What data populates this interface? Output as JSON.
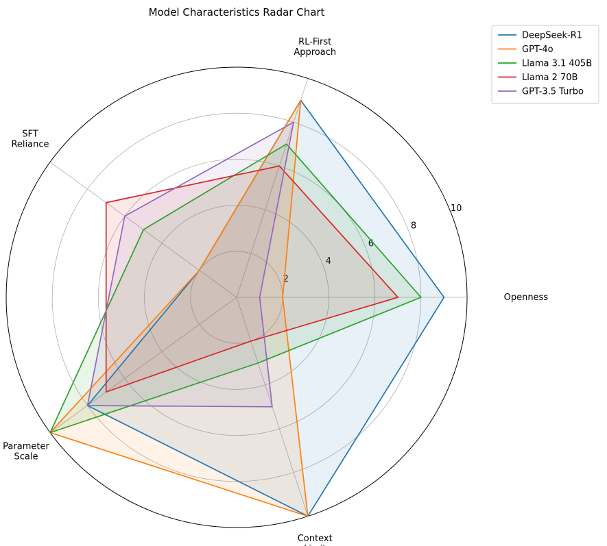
{
  "chart_data": {
    "type": "radar",
    "title": "Model Characteristics Radar Chart",
    "axes": [
      {
        "key": "openness",
        "label_lines": [
          "Openness"
        ]
      },
      {
        "key": "rl_first",
        "label_lines": [
          "RL-First",
          "Approach"
        ]
      },
      {
        "key": "sft",
        "label_lines": [
          "SFT",
          "Reliance"
        ]
      },
      {
        "key": "param",
        "label_lines": [
          "Parameter",
          "Scale"
        ]
      },
      {
        "key": "context",
        "label_lines": [
          "Context",
          "Limit"
        ]
      }
    ],
    "rlim": [
      0,
      10
    ],
    "radial_ticks": [
      "2",
      "4",
      "6",
      "8",
      "10"
    ],
    "radial_tick_values": [
      2,
      4,
      6,
      8,
      10
    ],
    "grid": true,
    "legend_position": "top-right outside",
    "series": [
      {
        "name": "DeepSeek-R1",
        "color": "#1f77b4",
        "values": [
          9,
          9,
          2,
          8,
          10
        ]
      },
      {
        "name": "GPT-4o",
        "color": "#ff7f0e",
        "values": [
          2,
          9,
          2,
          10,
          10
        ]
      },
      {
        "name": "Llama 3.1 405B",
        "color": "#2ca02c",
        "values": [
          8,
          7,
          5,
          10,
          3
        ]
      },
      {
        "name": "Llama 2 70B",
        "color": "#d62728",
        "values": [
          7,
          6,
          7,
          7,
          2
        ]
      },
      {
        "name": "GPT-3.5 Turbo",
        "color": "#9467bd",
        "values": [
          1,
          8,
          6,
          8,
          5
        ]
      }
    ]
  }
}
